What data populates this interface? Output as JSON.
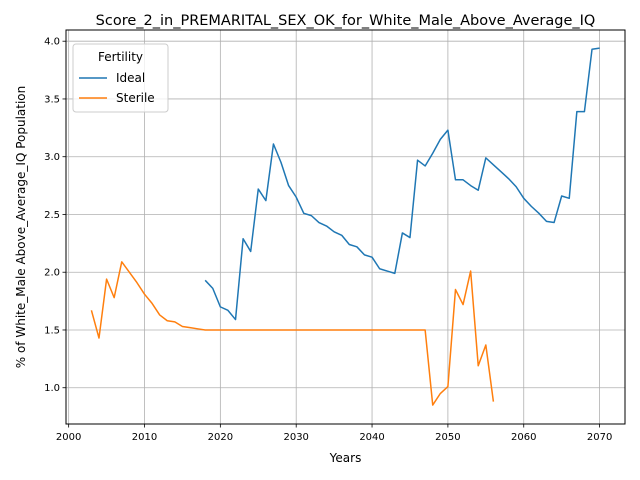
{
  "chart_data": {
    "type": "line",
    "title": "Score_2_in_PREMARITAL_SEX_OK_for_White_Male_Above_Average_IQ",
    "xlabel": "Years",
    "ylabel": "% of White_Male Above_Average_IQ Population",
    "xlim": [
      1999.65,
      2073.35
    ],
    "ylim": [
      0.686,
      4.097
    ],
    "xticks": [
      2000,
      2010,
      2020,
      2030,
      2040,
      2050,
      2060,
      2070
    ],
    "yticks": [
      1.0,
      1.5,
      2.0,
      2.5,
      3.0,
      3.5,
      4.0
    ],
    "xtick_labels": [
      "2000",
      "2010",
      "2020",
      "2030",
      "2040",
      "2050",
      "2060",
      "2070"
    ],
    "ytick_labels": [
      "1.0",
      "1.5",
      "2.0",
      "2.5",
      "3.0",
      "3.5",
      "4.0"
    ],
    "grid": true,
    "legend": {
      "title": "Fertility",
      "position": "top-left"
    },
    "series": [
      {
        "name": "Ideal",
        "color": "#1f77b4",
        "x": [
          2018,
          2019,
          2020,
          2021,
          2022,
          2023,
          2024,
          2025,
          2026,
          2027,
          2028,
          2029,
          2030,
          2031,
          2032,
          2033,
          2034,
          2035,
          2036,
          2037,
          2038,
          2039,
          2040,
          2041,
          2042,
          2043,
          2044,
          2045,
          2046,
          2047,
          2048,
          2049,
          2050,
          2051,
          2052,
          2053,
          2054,
          2055,
          2056,
          2057,
          2058,
          2059,
          2060,
          2061,
          2062,
          2063,
          2064,
          2065,
          2066,
          2067,
          2068,
          2069,
          2070
        ],
        "y": [
          1.93,
          1.86,
          1.7,
          1.67,
          1.59,
          2.29,
          2.18,
          2.72,
          2.62,
          3.11,
          2.95,
          2.75,
          2.65,
          2.51,
          2.49,
          2.43,
          2.4,
          2.35,
          2.32,
          2.24,
          2.22,
          2.15,
          2.13,
          2.03,
          2.01,
          1.99,
          2.34,
          2.3,
          2.97,
          2.92,
          3.03,
          3.15,
          3.23,
          2.8,
          2.8,
          2.75,
          2.71,
          2.99,
          2.93,
          2.87,
          2.81,
          2.74,
          2.64,
          2.57,
          2.51,
          2.44,
          2.43,
          2.66,
          2.64,
          3.39,
          3.39,
          3.93,
          3.94
        ]
      },
      {
        "name": "Sterile",
        "color": "#ff7f0e",
        "x": [
          2003,
          2004,
          2005,
          2006,
          2007,
          2008,
          2009,
          2010,
          2011,
          2012,
          2013,
          2014,
          2015,
          2016,
          2017,
          2018,
          2019,
          2020,
          2021,
          2022,
          2023,
          2024,
          2025,
          2026,
          2027,
          2028,
          2029,
          2030,
          2031,
          2032,
          2033,
          2034,
          2035,
          2036,
          2037,
          2038,
          2039,
          2040,
          2041,
          2042,
          2043,
          2044,
          2045,
          2046,
          2047,
          2048,
          2049,
          2050,
          2051,
          2052,
          2053,
          2054,
          2055,
          2056
        ],
        "y": [
          1.67,
          1.43,
          1.94,
          1.78,
          2.09,
          2.0,
          1.91,
          1.81,
          1.73,
          1.63,
          1.58,
          1.57,
          1.53,
          1.52,
          1.51,
          1.5,
          1.5,
          1.5,
          1.5,
          1.5,
          1.5,
          1.5,
          1.5,
          1.5,
          1.5,
          1.5,
          1.5,
          1.5,
          1.5,
          1.5,
          1.5,
          1.5,
          1.5,
          1.5,
          1.5,
          1.5,
          1.5,
          1.5,
          1.5,
          1.5,
          1.5,
          1.5,
          1.5,
          1.5,
          1.5,
          0.85,
          0.95,
          1.01,
          1.85,
          1.72,
          2.01,
          1.19,
          1.37,
          0.88
        ]
      }
    ]
  }
}
